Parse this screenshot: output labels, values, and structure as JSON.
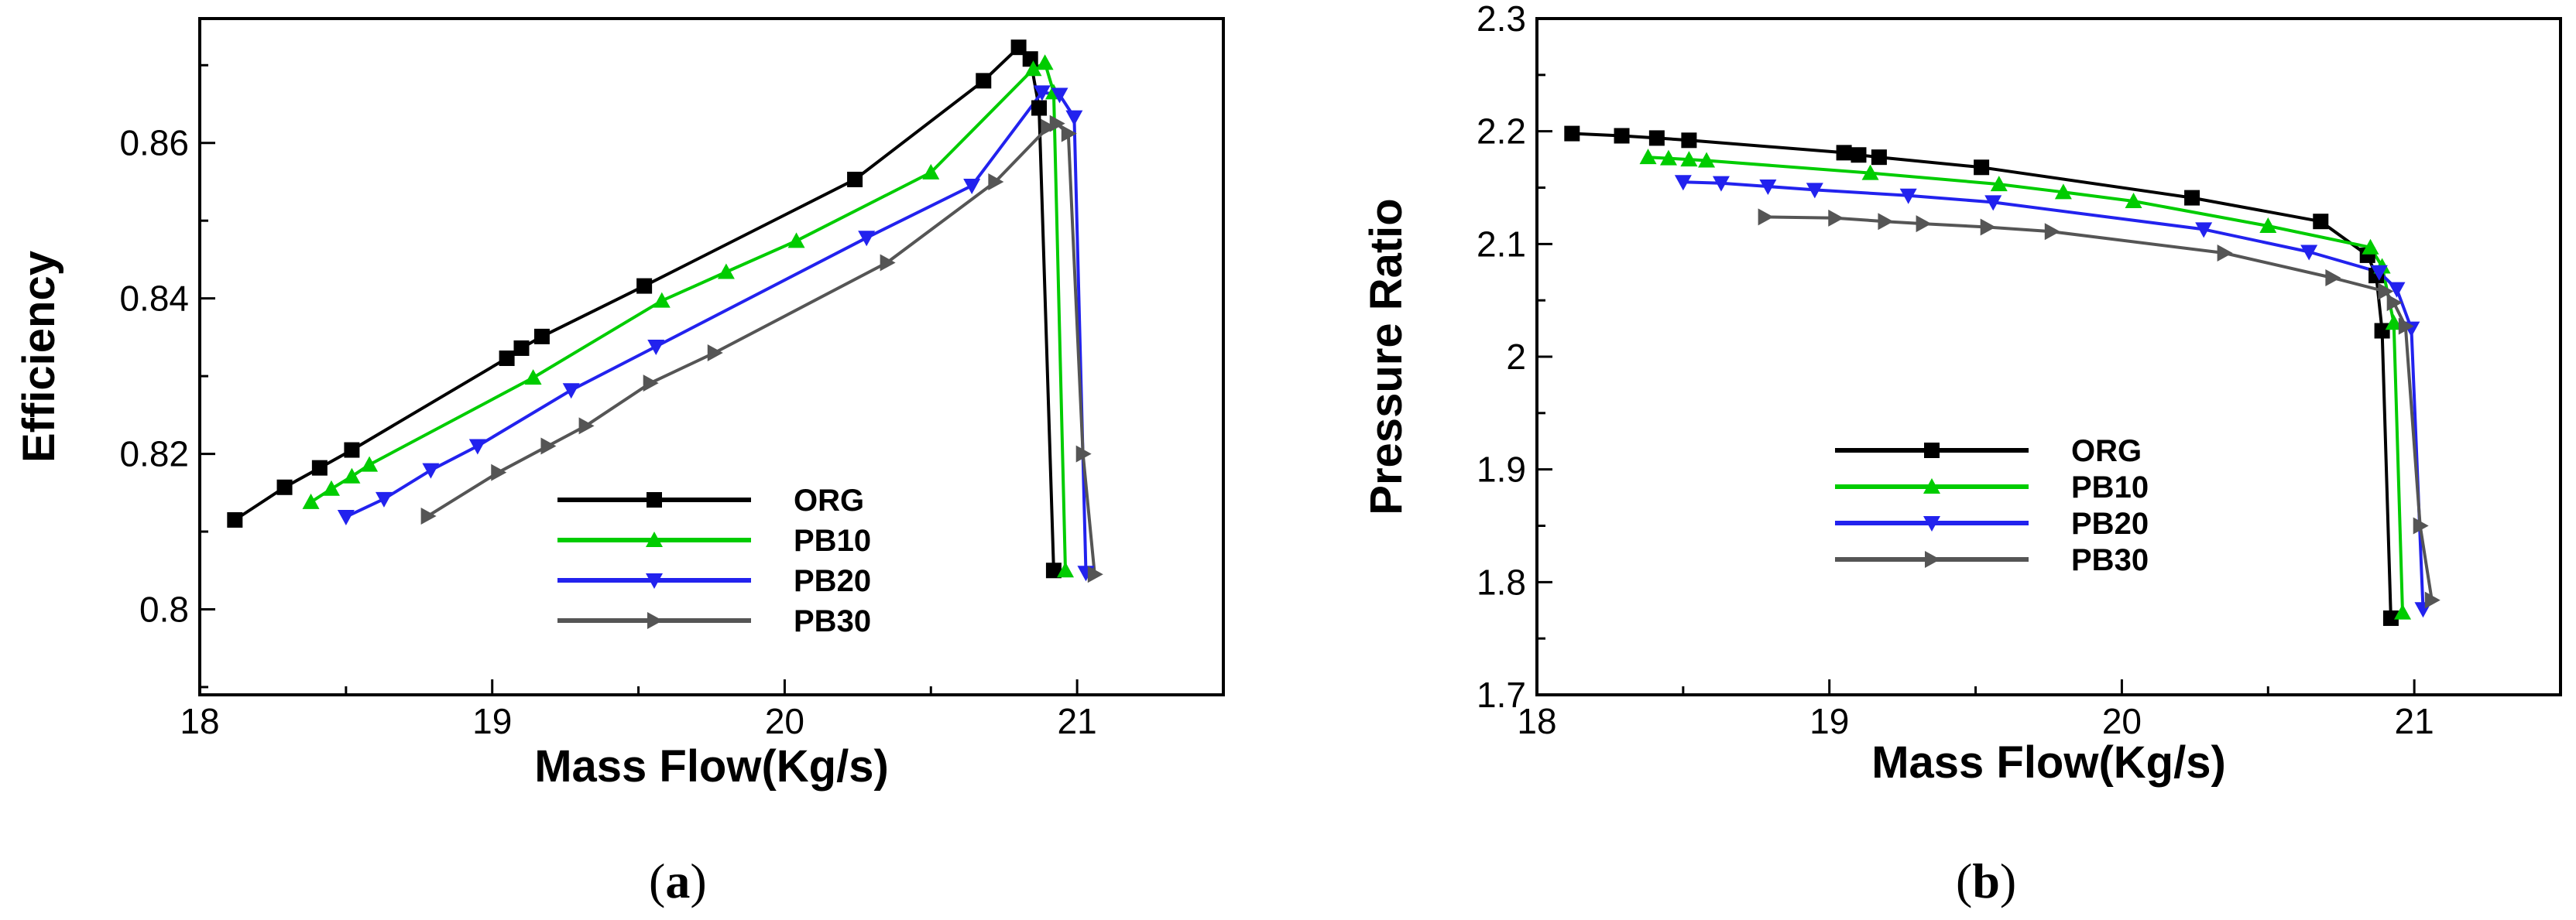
{
  "colors": {
    "ORG": "#000000",
    "PB10": "#00cc00",
    "PB20": "#2222ee",
    "PB30": "#555555"
  },
  "chart_data": [
    {
      "type": "line",
      "panel": "(a)",
      "panel_letter": "a",
      "xlabel": "Mass Flow(Kg/s)",
      "ylabel": "Efficiency",
      "xlim": [
        18,
        21.5
      ],
      "ylim": [
        0.789,
        0.876
      ],
      "xticks": [
        18,
        19,
        20,
        21
      ],
      "xtick_labels": [
        "18",
        "19",
        "20",
        "21"
      ],
      "yticks": [
        0.8,
        0.82,
        0.84,
        0.86
      ],
      "ytick_labels": [
        "0.8",
        "0.82",
        "0.84",
        "0.86"
      ],
      "legend_position": "bottom-right",
      "series": [
        {
          "name": "ORG",
          "marker": "square",
          "x": [
            18.12,
            18.29,
            18.41,
            18.52,
            19.05,
            19.1,
            19.17,
            19.52,
            20.24,
            20.68,
            20.8,
            20.84,
            20.87,
            20.92
          ],
          "y": [
            0.8115,
            0.8157,
            0.8182,
            0.8205,
            0.8323,
            0.8336,
            0.8351,
            0.8416,
            0.8553,
            0.868,
            0.8723,
            0.8708,
            0.8645,
            0.805
          ]
        },
        {
          "name": "PB10",
          "marker": "triangle-up",
          "x": [
            18.38,
            18.45,
            18.52,
            18.58,
            19.14,
            19.58,
            19.8,
            20.04,
            20.5,
            20.85,
            20.89,
            20.92,
            20.96
          ],
          "y": [
            0.8138,
            0.8155,
            0.8171,
            0.8186,
            0.8298,
            0.8397,
            0.8434,
            0.8474,
            0.8562,
            0.8695,
            0.8703,
            0.8665,
            0.805
          ]
        },
        {
          "name": "PB20",
          "marker": "triangle-down",
          "x": [
            18.5,
            18.63,
            18.79,
            18.95,
            19.27,
            19.56,
            20.28,
            20.64,
            20.88,
            20.94,
            20.99,
            21.03
          ],
          "y": [
            0.8119,
            0.8142,
            0.8179,
            0.821,
            0.8282,
            0.8338,
            0.8478,
            0.8545,
            0.8665,
            0.8662,
            0.8633,
            0.8047
          ]
        },
        {
          "name": "PB30",
          "marker": "triangle-right",
          "x": [
            18.78,
            19.02,
            19.19,
            19.32,
            19.54,
            19.76,
            20.35,
            20.72,
            20.9,
            20.93,
            20.97,
            21.02,
            21.06
          ],
          "y": [
            0.812,
            0.8176,
            0.821,
            0.8236,
            0.8291,
            0.833,
            0.8446,
            0.855,
            0.862,
            0.8625,
            0.8612,
            0.82,
            0.8045
          ]
        }
      ]
    },
    {
      "type": "line",
      "panel": "(b)",
      "panel_letter": "b",
      "xlabel": "Mass Flow(Kg/s)",
      "ylabel": "Pressure Ratio",
      "xlim": [
        18,
        21.5
      ],
      "ylim": [
        1.7,
        2.3
      ],
      "xticks": [
        18,
        19,
        20,
        21
      ],
      "xtick_labels": [
        "18",
        "19",
        "20",
        "21"
      ],
      "yticks": [
        1.7,
        1.8,
        1.9,
        2.0,
        2.1,
        2.2,
        2.3
      ],
      "ytick_labels": [
        "1.7",
        "1.8",
        "1.9",
        "2",
        "2.1",
        "2.2",
        "2.3"
      ],
      "legend_position": "center",
      "series": [
        {
          "name": "ORG",
          "marker": "square",
          "x": [
            18.12,
            18.29,
            18.41,
            18.52,
            19.05,
            19.1,
            19.17,
            19.52,
            20.24,
            20.68,
            20.84,
            20.87,
            20.89,
            20.92
          ],
          "y": [
            2.198,
            2.196,
            2.194,
            2.192,
            2.181,
            2.179,
            2.177,
            2.168,
            2.141,
            2.12,
            2.09,
            2.072,
            2.023,
            1.768
          ]
        },
        {
          "name": "PB10",
          "marker": "triangle-up",
          "x": [
            18.38,
            18.45,
            18.52,
            18.58,
            19.14,
            19.58,
            19.8,
            20.04,
            20.5,
            20.85,
            20.89,
            20.93,
            20.96
          ],
          "y": [
            2.177,
            2.176,
            2.175,
            2.174,
            2.163,
            2.153,
            2.146,
            2.138,
            2.116,
            2.097,
            2.08,
            2.03,
            1.773
          ]
        },
        {
          "name": "PB20",
          "marker": "triangle-down",
          "x": [
            18.5,
            18.63,
            18.79,
            18.95,
            19.27,
            19.56,
            20.28,
            20.64,
            20.88,
            20.94,
            20.99,
            21.03
          ],
          "y": [
            2.155,
            2.154,
            2.151,
            2.148,
            2.143,
            2.137,
            2.113,
            2.093,
            2.075,
            2.06,
            2.025,
            1.776
          ]
        },
        {
          "name": "PB30",
          "marker": "triangle-right",
          "x": [
            18.78,
            19.02,
            19.19,
            19.32,
            19.54,
            19.76,
            20.35,
            20.72,
            20.9,
            20.93,
            20.97,
            21.02,
            21.06
          ],
          "y": [
            2.124,
            2.123,
            2.12,
            2.118,
            2.115,
            2.111,
            2.092,
            2.07,
            2.058,
            2.048,
            2.027,
            1.85,
            1.784
          ]
        }
      ]
    }
  ]
}
